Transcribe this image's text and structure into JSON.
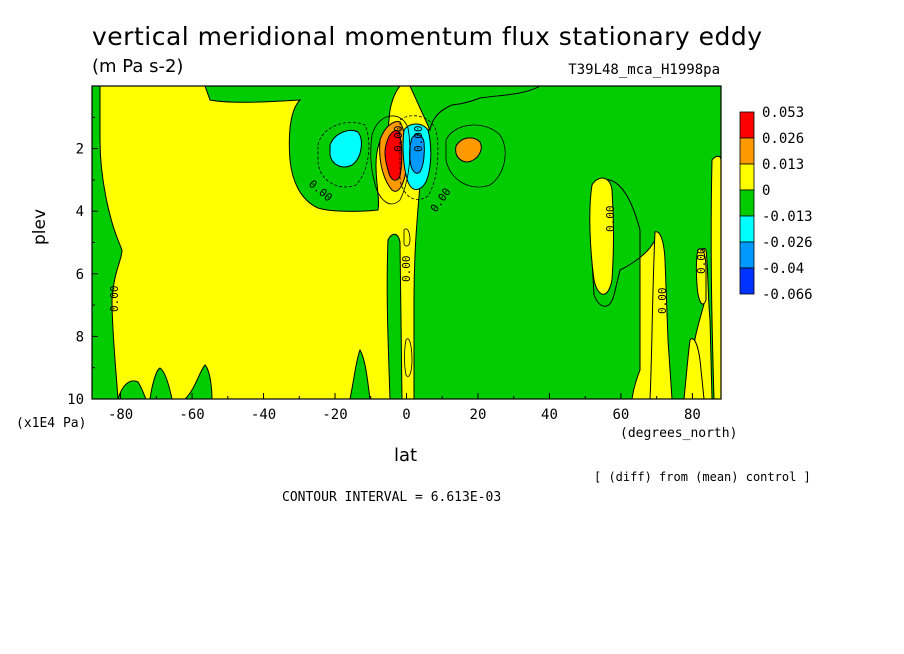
{
  "chart_data": {
    "type": "heatmap",
    "title": "vertical meridional momentum flux stationary eddy",
    "units": "(m Pa s-2)",
    "run_label": "T39L48_mca_H1998pa",
    "xlabel": "lat",
    "ylabel": "plev",
    "x_units": "(degrees_north)",
    "y_units": "(x1E4 Pa)",
    "x_ticks": [
      -80,
      -60,
      -40,
      -20,
      0,
      20,
      40,
      60,
      80
    ],
    "y_ticks": [
      2,
      4,
      6,
      8,
      10
    ],
    "xlim": [
      -88,
      88
    ],
    "ylim": [
      10,
      0
    ],
    "diff_note": "[ (diff) from (mean) control ]",
    "contour_interval": "CONTOUR INTERVAL = 6.613E-03",
    "contour_labels": [
      "0.00",
      "0.00",
      "0.00",
      "0.00",
      "0.00",
      "0.00",
      "0.00",
      "0.00",
      "0.00"
    ],
    "colorbar": {
      "levels": [
        "0.053",
        "0.026",
        "0.013",
        "0",
        "-0.013",
        "-0.026",
        "-0.04",
        "-0.066"
      ],
      "colors": [
        "#ff0000",
        "#ff9900",
        "#ffff00",
        "#00cc00",
        "#00ffff",
        "#0099ff",
        "#0033ff"
      ]
    },
    "features": [
      {
        "name": "positive maximum",
        "lat": -3,
        "plev": 2.2,
        "value": 0.053
      },
      {
        "name": "negative minimum",
        "lat": 5,
        "plev": 2.2,
        "value": -0.04
      },
      {
        "name": "negative lobe",
        "lat": -17,
        "plev": 2.0,
        "value": -0.026
      },
      {
        "name": "positive lobe",
        "lat": 17,
        "plev": 2.0,
        "value": 0.026
      }
    ]
  }
}
